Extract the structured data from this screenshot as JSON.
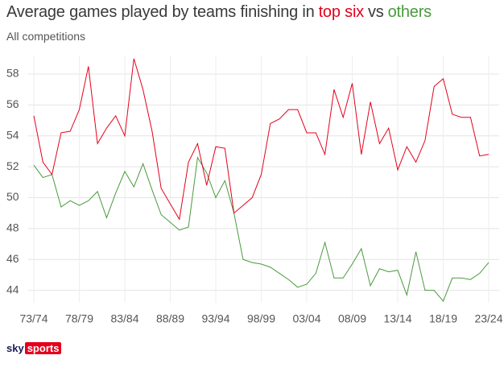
{
  "chart_data": {
    "type": "line",
    "title": [
      "Average games played by teams finishing in",
      "vs"
    ],
    "subtitle": "All competitions",
    "logo": [
      "sky",
      "sports"
    ],
    "categories": [
      "73/74",
      null,
      null,
      null,
      null,
      "78/79",
      null,
      null,
      null,
      null,
      "83/84",
      null,
      null,
      null,
      null,
      "88/89",
      null,
      null,
      null,
      null,
      "93/94",
      null,
      null,
      null,
      null,
      "98/99",
      null,
      null,
      null,
      null,
      "03/04",
      null,
      null,
      null,
      null,
      "08/09",
      null,
      null,
      null,
      null,
      "13/14",
      null,
      null,
      null,
      null,
      "18/19",
      null,
      null,
      null,
      null,
      "23/24"
    ],
    "series": [
      {
        "name": "top six",
        "color": "#e4001b",
        "values": [
          55.3,
          52.3,
          51.5,
          54.2,
          54.3,
          55.7,
          58.5,
          53.5,
          54.5,
          55.3,
          54.0,
          59.0,
          57.0,
          54.3,
          50.6,
          49.6,
          48.6,
          52.3,
          53.5,
          50.8,
          53.3,
          53.2,
          49.0,
          49.5,
          50.0,
          51.5,
          54.8,
          55.1,
          55.7,
          55.7,
          54.2,
          54.2,
          52.8,
          57.0,
          55.2,
          57.4,
          52.8,
          56.2,
          53.5,
          54.5,
          51.8,
          53.3,
          52.3,
          53.7,
          57.2,
          57.7,
          55.4,
          55.2,
          55.2,
          52.7,
          52.8
        ]
      },
      {
        "name": "others",
        "color": "#4a9a3e",
        "values": [
          52.1,
          51.3,
          51.5,
          49.4,
          49.8,
          49.5,
          49.8,
          50.4,
          48.7,
          50.3,
          51.7,
          50.7,
          52.2,
          50.5,
          48.9,
          48.4,
          47.9,
          48.1,
          52.6,
          51.6,
          50.0,
          51.1,
          49.0,
          46.0,
          45.8,
          45.7,
          45.5,
          45.1,
          44.7,
          44.2,
          44.4,
          45.1,
          47.1,
          44.8,
          44.8,
          45.7,
          46.7,
          44.3,
          45.4,
          45.2,
          45.3,
          43.7,
          46.5,
          44.0,
          44.0,
          43.3,
          44.8,
          44.8,
          44.7,
          45.1,
          45.8
        ]
      }
    ],
    "ylim": [
      43.2,
      59.2
    ],
    "yticks": [
      44,
      46,
      48,
      50,
      52,
      54,
      56,
      58
    ],
    "grid": true
  }
}
